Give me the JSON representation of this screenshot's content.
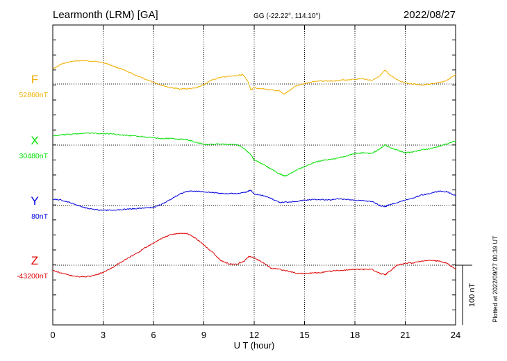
{
  "header": {
    "station": "Learmonth (LRM)  [GA]",
    "coords": "GG (-22.22°, 114.10°)",
    "date": "2022/08/27"
  },
  "footer": {
    "plotted": "Plotted at 2022/09/27 00:39 UT",
    "scale_bar": "100 nT"
  },
  "colors": {
    "F": "#f0b000",
    "X": "#00e000",
    "Y": "#0000e0",
    "Z": "#e00000"
  },
  "chart_data": {
    "type": "line",
    "xlabel": "U T (hour)",
    "xlim": [
      0,
      24
    ],
    "x_ticks": [
      0,
      3,
      6,
      9,
      12,
      15,
      18,
      21,
      24
    ],
    "x_tick_labels": [
      "0",
      "3",
      "6",
      "9",
      "12",
      "15",
      "18",
      "21",
      "24"
    ],
    "ylabel": "",
    "scale_nT": 100,
    "grid": true,
    "series": [
      {
        "name": "F",
        "baseline_label": "52860nT",
        "baseline_nT": 52860,
        "points": [
          [
            0,
            52885
          ],
          [
            0.5,
            52893
          ],
          [
            1,
            52897
          ],
          [
            1.5,
            52899
          ],
          [
            2,
            52899
          ],
          [
            2.5,
            52898
          ],
          [
            3,
            52896
          ],
          [
            3.5,
            52891
          ],
          [
            4,
            52886
          ],
          [
            4.5,
            52880
          ],
          [
            5,
            52874
          ],
          [
            5.5,
            52868
          ],
          [
            6,
            52863
          ],
          [
            6.5,
            52858
          ],
          [
            7,
            52854
          ],
          [
            7.5,
            52852
          ],
          [
            8,
            52852
          ],
          [
            8.5,
            52853
          ],
          [
            9,
            52859
          ],
          [
            9.5,
            52867
          ],
          [
            10,
            52871
          ],
          [
            10.5,
            52873
          ],
          [
            11,
            52874
          ],
          [
            11.3,
            52876
          ],
          [
            11.6,
            52866
          ],
          [
            11.8,
            52850
          ],
          [
            12,
            52854
          ],
          [
            12.5,
            52852
          ],
          [
            13,
            52850
          ],
          [
            13.5,
            52848
          ],
          [
            13.8,
            52843
          ],
          [
            14,
            52847
          ],
          [
            14.5,
            52857
          ],
          [
            15,
            52861
          ],
          [
            15.5,
            52864
          ],
          [
            16,
            52865
          ],
          [
            16.5,
            52865
          ],
          [
            17,
            52866
          ],
          [
            17.5,
            52867
          ],
          [
            18,
            52868
          ],
          [
            18.5,
            52869
          ],
          [
            19,
            52866
          ],
          [
            19.5,
            52874
          ],
          [
            19.8,
            52883
          ],
          [
            20,
            52877
          ],
          [
            20.5,
            52867
          ],
          [
            21,
            52862
          ],
          [
            21.5,
            52860
          ],
          [
            22,
            52858
          ],
          [
            22.5,
            52860
          ],
          [
            23,
            52862
          ],
          [
            23.5,
            52866
          ],
          [
            24,
            52876
          ]
        ]
      },
      {
        "name": "X",
        "baseline_label": "30480nT",
        "baseline_nT": 30480,
        "points": [
          [
            0,
            30495
          ],
          [
            0.5,
            30497
          ],
          [
            1,
            30498
          ],
          [
            1.5,
            30499
          ],
          [
            2,
            30500
          ],
          [
            2.5,
            30500
          ],
          [
            3,
            30499
          ],
          [
            3.5,
            30499
          ],
          [
            4,
            30497
          ],
          [
            4.5,
            30496
          ],
          [
            5,
            30495
          ],
          [
            5.5,
            30494
          ],
          [
            6,
            30492
          ],
          [
            6.5,
            30491
          ],
          [
            7,
            30491
          ],
          [
            7.5,
            30490
          ],
          [
            8,
            30489
          ],
          [
            8.5,
            30485
          ],
          [
            9,
            30481
          ],
          [
            9.5,
            30481
          ],
          [
            10,
            30482
          ],
          [
            10.5,
            30481
          ],
          [
            11,
            30481
          ],
          [
            11.4,
            30474
          ],
          [
            11.8,
            30464
          ],
          [
            12,
            30455
          ],
          [
            12.5,
            30448
          ],
          [
            13,
            30440
          ],
          [
            13.5,
            30432
          ],
          [
            13.8,
            30428
          ],
          [
            14,
            30430
          ],
          [
            14.5,
            30438
          ],
          [
            15,
            30444
          ],
          [
            15.5,
            30450
          ],
          [
            16,
            30454
          ],
          [
            16.5,
            30456
          ],
          [
            17,
            30458
          ],
          [
            17.5,
            30462
          ],
          [
            18,
            30466
          ],
          [
            18.5,
            30467
          ],
          [
            19,
            30466
          ],
          [
            19.5,
            30474
          ],
          [
            19.8,
            30481
          ],
          [
            20,
            30477
          ],
          [
            20.5,
            30472
          ],
          [
            21,
            30467
          ],
          [
            21.5,
            30469
          ],
          [
            22,
            30472
          ],
          [
            22.5,
            30474
          ],
          [
            23,
            30478
          ],
          [
            23.5,
            30482
          ],
          [
            24,
            30487
          ]
        ]
      },
      {
        "name": "Y",
        "baseline_label": "80nT",
        "baseline_nT": 80,
        "points": [
          [
            0,
            91
          ],
          [
            0.5,
            89
          ],
          [
            1,
            85
          ],
          [
            1.5,
            80
          ],
          [
            2,
            76
          ],
          [
            2.5,
            73
          ],
          [
            3,
            72
          ],
          [
            3.5,
            72
          ],
          [
            4,
            73
          ],
          [
            4.5,
            74
          ],
          [
            5,
            75
          ],
          [
            5.5,
            76
          ],
          [
            6,
            77
          ],
          [
            6.5,
            82
          ],
          [
            7,
            90
          ],
          [
            7.5,
            98
          ],
          [
            8,
            104
          ],
          [
            8.5,
            104
          ],
          [
            9,
            103
          ],
          [
            9.5,
            102
          ],
          [
            10,
            100
          ],
          [
            10.5,
            100
          ],
          [
            11,
            100
          ],
          [
            11.5,
            102
          ],
          [
            11.8,
            106
          ],
          [
            12,
            99
          ],
          [
            12.5,
            97
          ],
          [
            13,
            92
          ],
          [
            13.5,
            85
          ],
          [
            14,
            86
          ],
          [
            14.5,
            87
          ],
          [
            15,
            89
          ],
          [
            15.5,
            90
          ],
          [
            16,
            90
          ],
          [
            16.5,
            89
          ],
          [
            17,
            91
          ],
          [
            17.5,
            90
          ],
          [
            18,
            89
          ],
          [
            18.5,
            88
          ],
          [
            19,
            87
          ],
          [
            19.5,
            80
          ],
          [
            19.8,
            78
          ],
          [
            20,
            81
          ],
          [
            20.5,
            85
          ],
          [
            21,
            89
          ],
          [
            21.5,
            93
          ],
          [
            22,
            98
          ],
          [
            22.5,
            100
          ],
          [
            23,
            104
          ],
          [
            23.5,
            103
          ],
          [
            24,
            96
          ]
        ]
      },
      {
        "name": "Z",
        "baseline_label": "-43200nT",
        "baseline_nT": -43200,
        "points": [
          [
            0,
            -43209
          ],
          [
            0.5,
            -43213
          ],
          [
            1,
            -43217
          ],
          [
            1.5,
            -43219
          ],
          [
            2,
            -43219
          ],
          [
            2.5,
            -43217
          ],
          [
            3,
            -43212
          ],
          [
            3.5,
            -43205
          ],
          [
            4,
            -43196
          ],
          [
            4.5,
            -43188
          ],
          [
            5,
            -43180
          ],
          [
            5.5,
            -43171
          ],
          [
            6,
            -43163
          ],
          [
            6.5,
            -43155
          ],
          [
            7,
            -43149
          ],
          [
            7.5,
            -43147
          ],
          [
            8,
            -43147
          ],
          [
            8.5,
            -43155
          ],
          [
            9,
            -43166
          ],
          [
            9.5,
            -43178
          ],
          [
            10,
            -43192
          ],
          [
            10.5,
            -43198
          ],
          [
            11,
            -43198
          ],
          [
            11.4,
            -43193
          ],
          [
            11.7,
            -43185
          ],
          [
            12,
            -43188
          ],
          [
            12.5,
            -43195
          ],
          [
            13,
            -43205
          ],
          [
            13.5,
            -43207
          ],
          [
            14,
            -43210
          ],
          [
            14.5,
            -43213
          ],
          [
            15,
            -43214
          ],
          [
            15.5,
            -43213
          ],
          [
            16,
            -43212
          ],
          [
            16.5,
            -43210
          ],
          [
            17,
            -43209
          ],
          [
            17.5,
            -43208
          ],
          [
            18,
            -43207
          ],
          [
            18.5,
            -43207
          ],
          [
            19,
            -43207
          ],
          [
            19.5,
            -43214
          ],
          [
            19.8,
            -43216
          ],
          [
            20,
            -43212
          ],
          [
            20.5,
            -43200
          ],
          [
            21,
            -43197
          ],
          [
            21.5,
            -43196
          ],
          [
            22,
            -43193
          ],
          [
            22.5,
            -43192
          ],
          [
            23,
            -43193
          ],
          [
            23.5,
            -43197
          ],
          [
            24,
            -43207
          ]
        ]
      }
    ]
  }
}
